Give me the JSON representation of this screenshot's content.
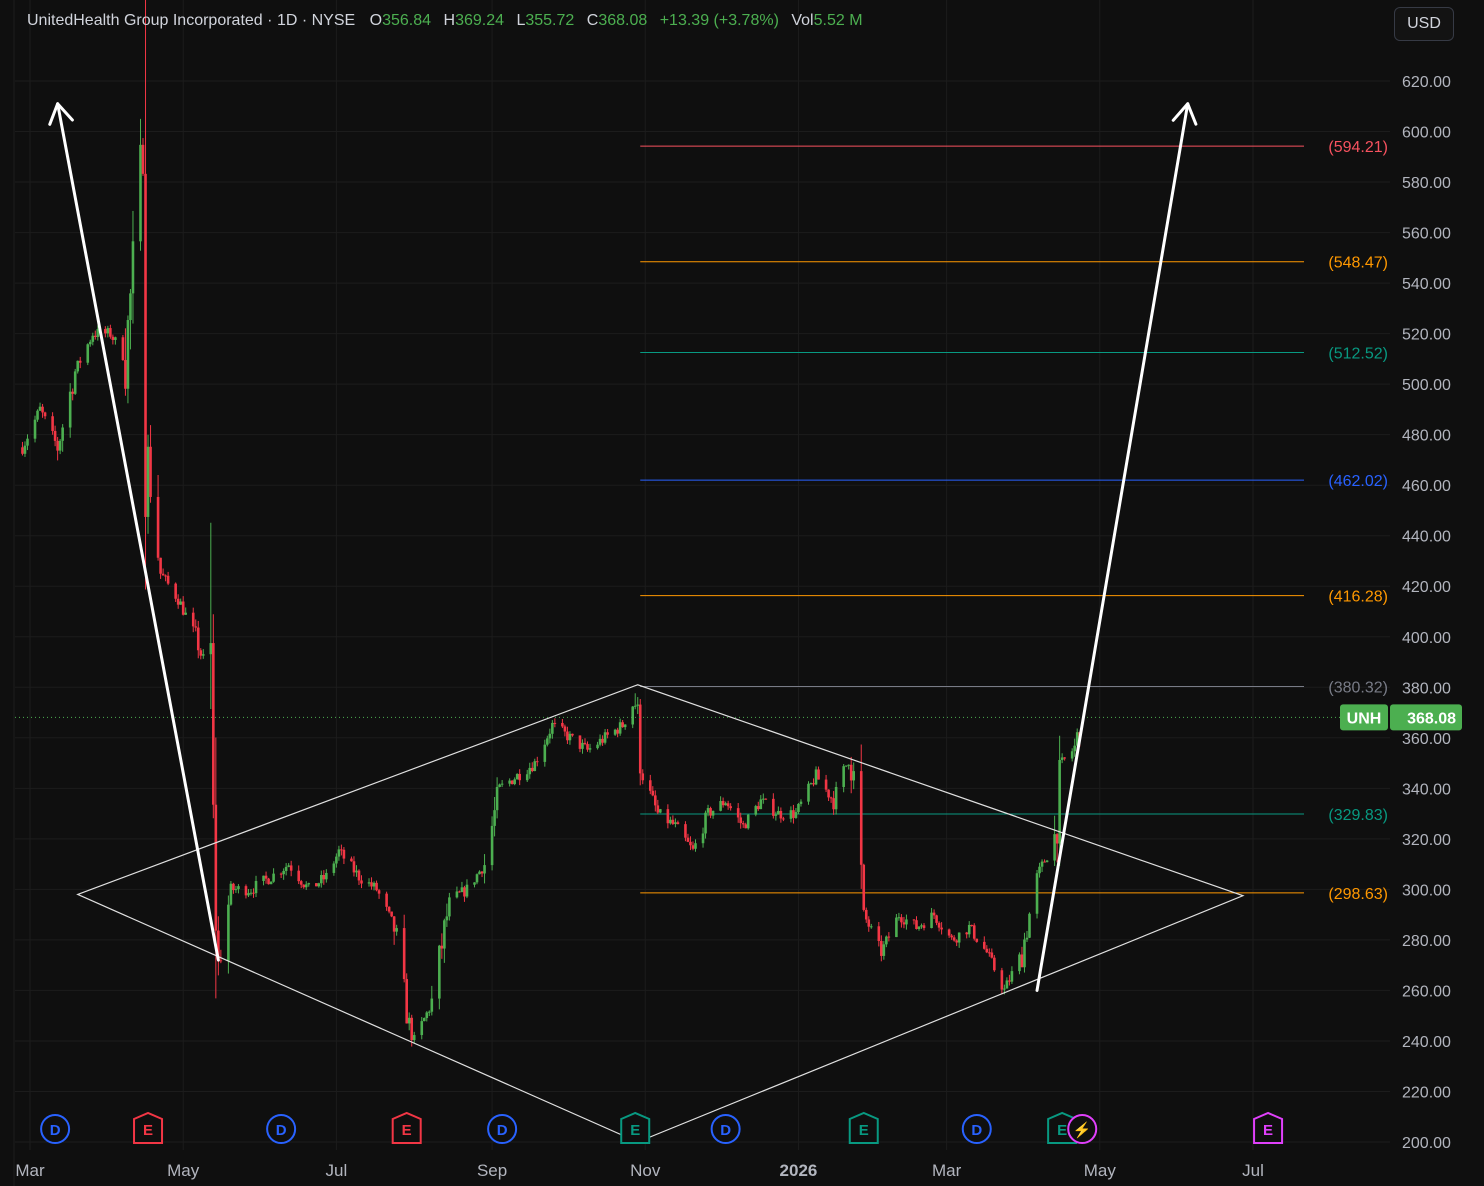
{
  "legend": {
    "name": "UnitedHealth Group Incorporated",
    "interval": "1D",
    "exchange": "NYSE",
    "o_label": "O",
    "open": "356.84",
    "h_label": "H",
    "high": "369.24",
    "l_label": "L",
    "low": "355.72",
    "c_label": "C",
    "close": "368.08",
    "change": "+13.39 (+3.78%)",
    "vol_label": "Vol",
    "volume": "5.52 M"
  },
  "toolbar": {
    "currency": "USD"
  },
  "price_tag": {
    "symbol": "UNH",
    "value": "368.08",
    "color": "#4caf50"
  },
  "colors": {
    "up": "#4caf50",
    "down": "#f23645",
    "background": "#0f0f0f",
    "grid": "#1c1c1c"
  },
  "chart_data": {
    "type": "candlestick",
    "title": "UnitedHealth Group Incorporated · 1D · NYSE",
    "ylim": [
      200,
      630
    ],
    "y_ticks": [
      "200.00",
      "220.00",
      "240.00",
      "260.00",
      "280.00",
      "300.00",
      "320.00",
      "340.00",
      "360.00",
      "380.00",
      "400.00",
      "420.00",
      "440.00",
      "460.00",
      "480.00",
      "500.00",
      "520.00",
      "540.00",
      "560.00",
      "580.00",
      "600.00",
      "620.00"
    ],
    "x_ticks": [
      {
        "label": "Mar",
        "date": "2025-03-01"
      },
      {
        "label": "May",
        "date": "2025-05-01"
      },
      {
        "label": "Jul",
        "date": "2025-07-01"
      },
      {
        "label": "Sep",
        "date": "2025-09-01"
      },
      {
        "label": "Nov",
        "date": "2025-11-01"
      },
      {
        "label": "2026",
        "date": "2026-01-01"
      },
      {
        "label": "Mar",
        "date": "2026-03-01"
      },
      {
        "label": "May",
        "date": "2026-05-01"
      },
      {
        "label": "Jul",
        "date": "2026-07-01"
      }
    ],
    "price_path": [
      [
        "2025-02-26",
        475
      ],
      [
        "2025-03-05",
        490
      ],
      [
        "2025-03-12",
        475
      ],
      [
        "2025-03-19",
        505
      ],
      [
        "2025-03-26",
        520
      ],
      [
        "2025-04-02",
        520
      ],
      [
        "2025-04-08",
        510
      ],
      [
        "2025-04-11",
        545
      ],
      [
        "2025-04-15",
        595
      ],
      [
        "2025-04-16",
        585
      ],
      [
        "2025-04-17",
        470
      ],
      [
        "2025-04-22",
        425
      ],
      [
        "2025-04-29",
        415
      ],
      [
        "2025-05-06",
        400
      ],
      [
        "2025-05-12",
        380
      ],
      [
        "2025-05-13",
        320
      ],
      [
        "2025-05-15",
        270
      ],
      [
        "2025-05-20",
        300
      ],
      [
        "2025-05-28",
        300
      ],
      [
        "2025-06-05",
        305
      ],
      [
        "2025-06-12",
        310
      ],
      [
        "2025-06-20",
        300
      ],
      [
        "2025-06-27",
        305
      ],
      [
        "2025-07-02",
        315
      ],
      [
        "2025-07-10",
        305
      ],
      [
        "2025-07-17",
        300
      ],
      [
        "2025-07-24",
        285
      ],
      [
        "2025-07-29",
        250
      ],
      [
        "2025-08-01",
        240
      ],
      [
        "2025-08-08",
        255
      ],
      [
        "2025-08-15",
        295
      ],
      [
        "2025-08-22",
        300
      ],
      [
        "2025-08-29",
        310
      ],
      [
        "2025-09-04",
        340
      ],
      [
        "2025-09-11",
        345
      ],
      [
        "2025-09-18",
        350
      ],
      [
        "2025-09-25",
        365
      ],
      [
        "2025-10-02",
        360
      ],
      [
        "2025-10-09",
        355
      ],
      [
        "2025-10-16",
        360
      ],
      [
        "2025-10-23",
        365
      ],
      [
        "2025-10-28",
        375
      ],
      [
        "2025-10-31",
        345
      ],
      [
        "2025-11-06",
        330
      ],
      [
        "2025-11-13",
        325
      ],
      [
        "2025-11-20",
        315
      ],
      [
        "2025-11-26",
        330
      ],
      [
        "2025-12-03",
        335
      ],
      [
        "2025-12-10",
        325
      ],
      [
        "2025-12-17",
        335
      ],
      [
        "2025-12-24",
        330
      ],
      [
        "2025-12-31",
        330
      ],
      [
        "2026-01-08",
        345
      ],
      [
        "2026-01-15",
        335
      ],
      [
        "2026-01-22",
        355
      ],
      [
        "2026-01-27",
        290
      ],
      [
        "2026-02-03",
        275
      ],
      [
        "2026-02-10",
        290
      ],
      [
        "2026-02-17",
        285
      ],
      [
        "2026-02-24",
        290
      ],
      [
        "2026-03-03",
        280
      ],
      [
        "2026-03-10",
        285
      ],
      [
        "2026-03-17",
        275
      ],
      [
        "2026-03-24",
        260
      ],
      [
        "2026-03-31",
        275
      ],
      [
        "2026-04-06",
        305
      ],
      [
        "2026-04-13",
        320
      ],
      [
        "2026-04-16",
        350
      ],
      [
        "2026-04-21",
        356
      ],
      [
        "2026-04-24",
        368.08
      ]
    ],
    "levels": [
      {
        "label": "(594.21)",
        "value": 594.21,
        "color": "#f7525f",
        "start": "2025-10-30"
      },
      {
        "label": "(548.47)",
        "value": 548.47,
        "color": "#ff9800",
        "start": "2025-10-30"
      },
      {
        "label": "(512.52)",
        "value": 512.52,
        "color": "#089981",
        "start": "2025-10-30"
      },
      {
        "label": "(462.02)",
        "value": 462.02,
        "color": "#2962ff",
        "start": "2025-10-30"
      },
      {
        "label": "(416.28)",
        "value": 416.28,
        "color": "#ff9800",
        "start": "2025-10-30"
      },
      {
        "label": "(380.32)",
        "value": 380.32,
        "color": "#787b86",
        "start": "2025-10-30"
      },
      {
        "label": "(329.83)",
        "value": 329.83,
        "color": "#089981",
        "start": "2025-10-30"
      },
      {
        "label": "(298.63)",
        "value": 298.63,
        "color": "#ff9800",
        "start": "2025-10-30"
      }
    ],
    "diamond": [
      [
        "2025-03-20",
        298
      ],
      [
        "2025-10-29",
        381
      ],
      [
        "2026-06-27",
        297.5
      ],
      [
        "2025-10-29",
        200
      ]
    ],
    "arrows": [
      {
        "from": [
          "2025-05-15",
          272
        ],
        "to": [
          "2025-03-12",
          611
        ]
      },
      {
        "from": [
          "2026-04-06",
          260
        ],
        "to": [
          "2026-06-05",
          611
        ]
      }
    ],
    "events": [
      {
        "label": "D",
        "date": "2025-03-11",
        "color": "#2962ff",
        "shape": "circle"
      },
      {
        "label": "E",
        "date": "2025-04-17",
        "color": "#f23645",
        "shape": "badge"
      },
      {
        "label": "D",
        "date": "2025-06-09",
        "color": "#2962ff",
        "shape": "circle"
      },
      {
        "label": "E",
        "date": "2025-07-29",
        "color": "#f23645",
        "shape": "badge"
      },
      {
        "label": "D",
        "date": "2025-09-05",
        "color": "#2962ff",
        "shape": "circle"
      },
      {
        "label": "E",
        "date": "2025-10-28",
        "color": "#089981",
        "shape": "badge"
      },
      {
        "label": "D",
        "date": "2025-12-03",
        "color": "#2962ff",
        "shape": "circle"
      },
      {
        "label": "E",
        "date": "2026-01-27",
        "color": "#089981",
        "shape": "badge"
      },
      {
        "label": "D",
        "date": "2026-03-13",
        "color": "#2962ff",
        "shape": "circle"
      },
      {
        "label": "E",
        "date": "2026-04-16",
        "color": "#089981",
        "shape": "badge"
      },
      {
        "label": "⚡",
        "date": "2026-04-24",
        "color": "#e040fb",
        "shape": "circle"
      },
      {
        "label": "E",
        "date": "2026-07-07",
        "color": "#e040fb",
        "shape": "badge"
      }
    ]
  }
}
